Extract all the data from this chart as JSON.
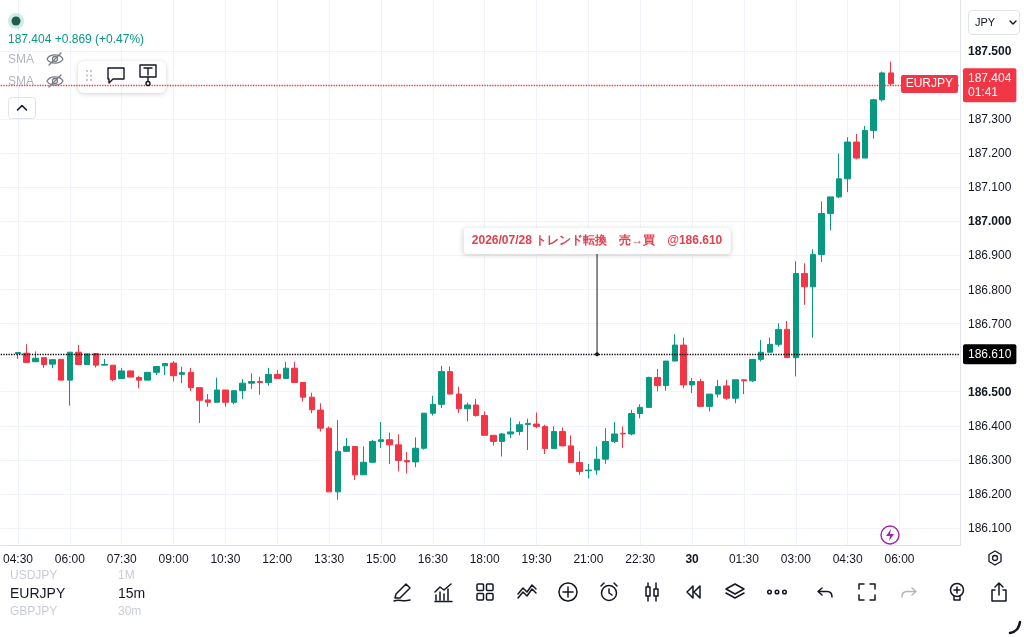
{
  "chart_data": {
    "type": "candlestick",
    "x": [
      "--07-29T04:30",
      "--07-29T04:45",
      "--07-29T05:00",
      "--07-29T05:15",
      "--07-29T05:30",
      "--07-29T05:45",
      "--07-29T06:00",
      "--07-29T06:15",
      "--07-29T06:30",
      "--07-29T06:45",
      "--07-29T07:00",
      "--07-29T07:15",
      "--07-29T07:30",
      "--07-29T07:45",
      "--07-29T08:00",
      "--07-29T08:15",
      "--07-29T08:30",
      "--07-29T08:45",
      "--07-29T09:00",
      "--07-29T09:15",
      "--07-29T09:30",
      "--07-29T09:45",
      "--07-29T10:00",
      "--07-29T10:15",
      "--07-29T10:30",
      "--07-29T10:45",
      "--07-29T11:00",
      "--07-29T11:15",
      "--07-29T11:30",
      "--07-29T11:45",
      "--07-29T12:00",
      "--07-29T12:15",
      "--07-29T12:30",
      "--07-29T12:45",
      "--07-29T13:00",
      "--07-29T13:15",
      "--07-29T13:30",
      "--07-29T13:45",
      "--07-29T14:00",
      "--07-29T14:15",
      "--07-29T14:30",
      "--07-29T14:45",
      "--07-29T15:00",
      "--07-29T15:15",
      "--07-29T15:30",
      "--07-29T15:45",
      "--07-29T16:00",
      "--07-29T16:15",
      "--07-29T16:30",
      "--07-29T16:45",
      "--07-29T17:00",
      "--07-29T17:15",
      "--07-29T17:30",
      "--07-29T17:45",
      "--07-29T18:00",
      "--07-29T18:15",
      "--07-29T18:30",
      "--07-29T18:45",
      "--07-29T19:00",
      "--07-29T19:15",
      "--07-29T19:30",
      "--07-29T19:45",
      "--07-29T20:00",
      "--07-29T20:15",
      "--07-29T20:30",
      "--07-29T20:45",
      "--07-29T21:00",
      "--07-29T21:15",
      "--07-29T21:30",
      "--07-29T21:45",
      "--07-29T22:00",
      "--07-29T22:15",
      "--07-29T22:30",
      "--07-29T22:45",
      "--07-29T23:00",
      "--07-29T23:15",
      "--07-29T23:30",
      "--07-29T23:45",
      "--07-30T00:00",
      "--07-30T00:15",
      "--07-30T00:30",
      "--07-30T00:45",
      "--07-30T01:00",
      "--07-30T01:15",
      "--07-30T01:30",
      "--07-30T01:45",
      "--07-30T02:00",
      "--07-30T02:15",
      "--07-30T02:30",
      "--07-30T02:45",
      "--07-30T03:00",
      "--07-30T03:15",
      "--07-30T03:30",
      "--07-30T03:45",
      "--07-30T04:00",
      "--07-30T04:15",
      "--07-30T04:30",
      "--07-30T04:45",
      "--07-30T05:00",
      "--07-30T05:15",
      "--07-30T05:30",
      "--07-30T05:45"
    ],
    "ohlc": [
      [
        186.612,
        186.616,
        186.596,
        186.615
      ],
      [
        186.613,
        186.639,
        186.586,
        186.586
      ],
      [
        186.588,
        186.618,
        186.588,
        186.598
      ],
      [
        186.6,
        186.6,
        186.57,
        186.58
      ],
      [
        186.581,
        186.594,
        186.569,
        186.594
      ],
      [
        186.595,
        186.595,
        186.534,
        186.534
      ],
      [
        186.534,
        186.616,
        186.459,
        186.616
      ],
      [
        186.616,
        186.637,
        186.58,
        186.58
      ],
      [
        186.58,
        186.611,
        186.58,
        186.611
      ],
      [
        186.612,
        186.612,
        186.571,
        186.578
      ],
      [
        186.578,
        186.596,
        186.578,
        186.58
      ],
      [
        186.578,
        186.578,
        186.531,
        186.536
      ],
      [
        186.539,
        186.57,
        186.539,
        186.561
      ],
      [
        186.561,
        186.561,
        186.543,
        186.543
      ],
      [
        186.542,
        186.547,
        186.51,
        186.534
      ],
      [
        186.534,
        186.557,
        186.534,
        186.557
      ],
      [
        186.557,
        186.574,
        186.549,
        186.574
      ],
      [
        186.576,
        186.583,
        186.549,
        186.583
      ],
      [
        186.584,
        186.59,
        186.53,
        186.547
      ],
      [
        186.551,
        186.573,
        186.525,
        186.556
      ],
      [
        186.557,
        186.57,
        186.502,
        186.512
      ],
      [
        186.512,
        186.512,
        186.408,
        186.475
      ],
      [
        186.476,
        186.493,
        186.456,
        186.469
      ],
      [
        186.469,
        186.541,
        186.469,
        186.505
      ],
      [
        186.505,
        186.505,
        186.456,
        186.469
      ],
      [
        186.469,
        186.503,
        186.463,
        186.503
      ],
      [
        186.503,
        186.537,
        186.479,
        186.525
      ],
      [
        186.525,
        186.554,
        186.508,
        186.53
      ],
      [
        186.53,
        186.544,
        186.491,
        186.527
      ],
      [
        186.527,
        186.57,
        186.518,
        186.551
      ],
      [
        186.551,
        186.564,
        186.539,
        186.539
      ],
      [
        186.539,
        186.588,
        186.539,
        186.569
      ],
      [
        186.569,
        186.588,
        186.527,
        186.527
      ],
      [
        186.527,
        186.527,
        186.471,
        186.484
      ],
      [
        186.484,
        186.497,
        186.437,
        186.447
      ],
      [
        186.446,
        186.466,
        186.383,
        186.393
      ],
      [
        186.393,
        186.398,
        186.206,
        186.206
      ],
      [
        186.206,
        186.417,
        186.183,
        186.325
      ],
      [
        186.325,
        186.364,
        186.323,
        186.339
      ],
      [
        186.339,
        186.339,
        186.241,
        186.256
      ],
      [
        186.256,
        186.339,
        186.256,
        186.293
      ],
      [
        186.293,
        186.359,
        186.291,
        186.354
      ],
      [
        186.354,
        186.411,
        186.335,
        186.359
      ],
      [
        186.359,
        186.38,
        186.288,
        186.344
      ],
      [
        186.344,
        186.375,
        186.266,
        186.298
      ],
      [
        186.298,
        186.323,
        186.26,
        186.294
      ],
      [
        186.294,
        186.366,
        186.278,
        186.334
      ],
      [
        186.334,
        186.437,
        186.33,
        186.437
      ],
      [
        186.437,
        186.488,
        186.43,
        186.463
      ],
      [
        186.463,
        186.576,
        186.452,
        186.559
      ],
      [
        186.559,
        186.574,
        186.493,
        186.493
      ],
      [
        186.493,
        186.515,
        186.437,
        186.45
      ],
      [
        186.45,
        186.468,
        186.413,
        186.461
      ],
      [
        186.461,
        186.479,
        186.427,
        186.43
      ],
      [
        186.43,
        186.442,
        186.372,
        186.372
      ],
      [
        186.372,
        186.372,
        186.342,
        186.354
      ],
      [
        186.354,
        186.379,
        186.31,
        186.376
      ],
      [
        186.376,
        186.424,
        186.364,
        186.382
      ],
      [
        186.383,
        186.413,
        186.372,
        186.403
      ],
      [
        186.404,
        186.421,
        186.329,
        186.407
      ],
      [
        186.405,
        186.439,
        186.393,
        186.398
      ],
      [
        186.398,
        186.403,
        186.317,
        186.333
      ],
      [
        186.333,
        186.398,
        186.333,
        186.383
      ],
      [
        186.383,
        186.395,
        186.341,
        186.341
      ],
      [
        186.341,
        186.372,
        186.292,
        186.292
      ],
      [
        186.292,
        186.325,
        186.256,
        186.266
      ],
      [
        186.268,
        186.288,
        186.245,
        186.27
      ],
      [
        186.27,
        186.339,
        186.256,
        186.302
      ],
      [
        186.302,
        186.393,
        186.288,
        186.354
      ],
      [
        186.354,
        186.411,
        186.349,
        186.376
      ],
      [
        186.378,
        186.398,
        186.335,
        186.376
      ],
      [
        186.376,
        186.447,
        186.372,
        186.436
      ],
      [
        186.436,
        186.463,
        186.422,
        186.454
      ],
      [
        186.454,
        186.544,
        186.454,
        186.542
      ],
      [
        186.542,
        186.567,
        186.501,
        186.518
      ],
      [
        186.518,
        186.59,
        186.503,
        186.59
      ],
      [
        186.59,
        186.669,
        186.59,
        186.637
      ],
      [
        186.637,
        186.659,
        186.51,
        186.52
      ],
      [
        186.52,
        186.54,
        186.496,
        186.53
      ],
      [
        186.53,
        186.538,
        186.457,
        186.457
      ],
      [
        186.457,
        186.493,
        186.442,
        186.493
      ],
      [
        186.493,
        186.535,
        186.483,
        186.515
      ],
      [
        186.517,
        186.535,
        186.476,
        186.481
      ],
      [
        186.481,
        186.535,
        186.466,
        186.535
      ],
      [
        186.535,
        186.535,
        186.493,
        186.532
      ],
      [
        186.532,
        186.595,
        186.528,
        186.595
      ],
      [
        186.595,
        186.652,
        186.589,
        186.616
      ],
      [
        186.616,
        186.659,
        186.616,
        186.639
      ],
      [
        186.639,
        186.701,
        186.632,
        186.683
      ],
      [
        186.683,
        186.708,
        186.6,
        186.6
      ],
      [
        186.6,
        186.883,
        186.545,
        186.847
      ],
      [
        186.847,
        186.877,
        186.755,
        186.808
      ],
      [
        186.808,
        186.918,
        186.659,
        186.903
      ],
      [
        186.903,
        187.059,
        186.881,
        187.023
      ],
      [
        187.023,
        187.072,
        186.974,
        187.072
      ],
      [
        187.072,
        187.199,
        187.069,
        187.125
      ],
      [
        187.125,
        187.247,
        187.086,
        187.233
      ],
      [
        187.233,
        187.257,
        187.182,
        187.186
      ],
      [
        187.186,
        187.28,
        187.186,
        187.267
      ],
      [
        187.267,
        187.36,
        187.243,
        187.357
      ],
      [
        187.357,
        187.44,
        187.352,
        187.436
      ],
      [
        187.436,
        187.469,
        187.399,
        187.404
      ]
    ],
    "colors": [
      "#089981",
      "#f23645",
      "#089981",
      "#f23645",
      "#089981",
      "#f23645",
      "#089981",
      "#f23645",
      "#089981",
      "#f23645",
      "#089981",
      "#f23645",
      "#089981",
      "#f23645",
      "#f23645",
      "#089981",
      "#089981",
      "#089981",
      "#f23645",
      "#089981",
      "#f23645",
      "#f23645",
      "#f23645",
      "#089981",
      "#f23645",
      "#089981",
      "#089981",
      "#089981",
      "#f23645",
      "#089981",
      "#f23645",
      "#089981",
      "#f23645",
      "#f23645",
      "#f23645",
      "#f23645",
      "#f23645",
      "#089981",
      "#089981",
      "#f23645",
      "#089981",
      "#089981",
      "#089981",
      "#f23645",
      "#f23645",
      "#f23645",
      "#089981",
      "#089981",
      "#089981",
      "#089981",
      "#f23645",
      "#f23645",
      "#089981",
      "#f23645",
      "#f23645",
      "#f23645",
      "#089981",
      "#089981",
      "#089981",
      "#089981",
      "#f23645",
      "#f23645",
      "#089981",
      "#f23645",
      "#f23645",
      "#f23645",
      "#089981",
      "#089981",
      "#089981",
      "#089981",
      "#f23645",
      "#089981",
      "#089981",
      "#089981",
      "#f23645",
      "#089981",
      "#089981",
      "#f23645",
      "#089981",
      "#f23645",
      "#089981",
      "#089981",
      "#f23645",
      "#089981",
      "#f23645",
      "#089981",
      "#089981",
      "#089981",
      "#089981",
      "#f23645",
      "#089981",
      "#f23645",
      "#089981",
      "#089981",
      "#089981",
      "#089981",
      "#089981",
      "#f23645",
      "#089981",
      "#089981",
      "#089981",
      "#f23645"
    ],
    "xlim": [
      "--07-29T04:00",
      "--07-30T07:45"
    ],
    "xticks": [
      {
        "value": "--07-29T04:30",
        "label": "04:30"
      },
      {
        "value": "--07-29T06:00",
        "label": "06:00"
      },
      {
        "value": "--07-29T07:30",
        "label": "07:30"
      },
      {
        "value": "--07-29T09:00",
        "label": "09:00"
      },
      {
        "value": "--07-29T10:30",
        "label": "10:30"
      },
      {
        "value": "--07-29T12:00",
        "label": "12:00"
      },
      {
        "value": "--07-29T13:30",
        "label": "13:30"
      },
      {
        "value": "--07-29T15:00",
        "label": "15:00"
      },
      {
        "value": "--07-29T16:30",
        "label": "16:30"
      },
      {
        "value": "--07-29T18:00",
        "label": "18:00"
      },
      {
        "value": "--07-29T19:30",
        "label": "19:30"
      },
      {
        "value": "--07-29T21:00",
        "label": "21:00"
      },
      {
        "value": "--07-29T22:30",
        "label": "22:30"
      },
      {
        "value": "--07-30T00:00",
        "label": "30"
      },
      {
        "value": "--07-30T01:30",
        "label": "01:30"
      },
      {
        "value": "--07-30T03:00",
        "label": "03:00"
      },
      {
        "value": "--07-30T04:30",
        "label": "04:30"
      },
      {
        "value": "--07-30T06:00",
        "label": "06:00"
      }
    ],
    "ylim": [
      186.05,
      187.65
    ],
    "yticks": [
      {
        "value": 186.1,
        "label": "186.100"
      },
      {
        "value": 186.2,
        "label": "186.200"
      },
      {
        "value": 186.3,
        "label": "186.300"
      },
      {
        "value": 186.4,
        "label": "186.400"
      },
      {
        "value": 186.5,
        "label": "186.500"
      },
      {
        "value": 186.6,
        "label": null
      },
      {
        "value": 186.7,
        "label": "186.700"
      },
      {
        "value": 186.8,
        "label": "186.800"
      },
      {
        "value": 186.9,
        "label": "186.900"
      },
      {
        "value": 187.0,
        "label": "187.000"
      },
      {
        "value": 187.1,
        "label": "187.100"
      },
      {
        "value": 187.2,
        "label": "187.200"
      },
      {
        "value": 187.3,
        "label": "187.300"
      },
      {
        "value": 187.4,
        "label": null
      },
      {
        "value": 187.5,
        "label": "187.500"
      }
    ],
    "grid": true,
    "ref_lines": [
      {
        "axis": "y",
        "value": 186.61,
        "label": "186.610",
        "color": "#000000",
        "line_style": "dotted"
      },
      {
        "axis": "y",
        "value": 187.404,
        "label": "187.404\n01:41",
        "color": "#f23645",
        "line_style": "dotted"
      }
    ],
    "annotations": [
      "187.404 +0.869 (+0.47%)",
      "SMA",
      "SMA",
      "JPY",
      "USDJPY",
      "1M",
      "EURJPY",
      "15m",
      "GBPJPY",
      "30m",
      {
        "text": "EURJPY",
        "y": 187.404
      },
      {
        "text": "2026/07/28 トレンド転換　売→買　@186.610",
        "x": "--07-29T21:15",
        "y": 186.61
      }
    ]
  }
}
